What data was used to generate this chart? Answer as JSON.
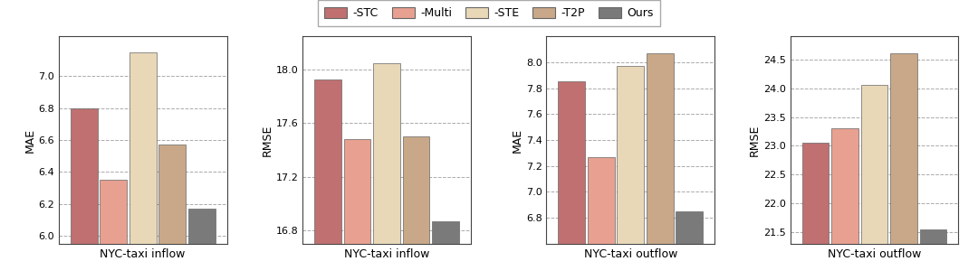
{
  "subplots": [
    {
      "title": "NYC-taxi inflow",
      "ylabel": "MAE",
      "values": [
        6.8,
        6.35,
        7.15,
        6.57,
        6.17
      ],
      "ylim": [
        5.95,
        7.25
      ],
      "yticks": [
        6.0,
        6.2,
        6.4,
        6.6,
        6.8,
        7.0
      ]
    },
    {
      "title": "NYC-taxi inflow",
      "ylabel": "RMSE",
      "values": [
        17.93,
        17.48,
        18.05,
        17.5,
        16.87
      ],
      "ylim": [
        16.7,
        18.25
      ],
      "yticks": [
        16.8,
        17.2,
        17.6,
        18.0
      ]
    },
    {
      "title": "NYC-taxi outflow",
      "ylabel": "MAE",
      "values": [
        7.85,
        7.27,
        7.97,
        8.07,
        6.85
      ],
      "ylim": [
        6.6,
        8.2
      ],
      "yticks": [
        6.8,
        7.0,
        7.2,
        7.4,
        7.6,
        7.8,
        8.0
      ]
    },
    {
      "title": "NYC-taxi outflow",
      "ylabel": "RMSE",
      "values": [
        23.05,
        23.3,
        24.05,
        24.6,
        21.55
      ],
      "ylim": [
        21.3,
        24.9
      ],
      "yticks": [
        21.5,
        22.0,
        22.5,
        23.0,
        23.5,
        24.0,
        24.5
      ]
    }
  ],
  "bar_colors": [
    "#c07070",
    "#e8a090",
    "#e8d8b8",
    "#c8a888",
    "#7a7a7a"
  ],
  "legend_labels": [
    "-STC",
    "-Multi",
    "-STE",
    "-T2P",
    "Ours"
  ],
  "background_color": "#ffffff",
  "bar_width": 0.14,
  "edge_color": "#666666"
}
